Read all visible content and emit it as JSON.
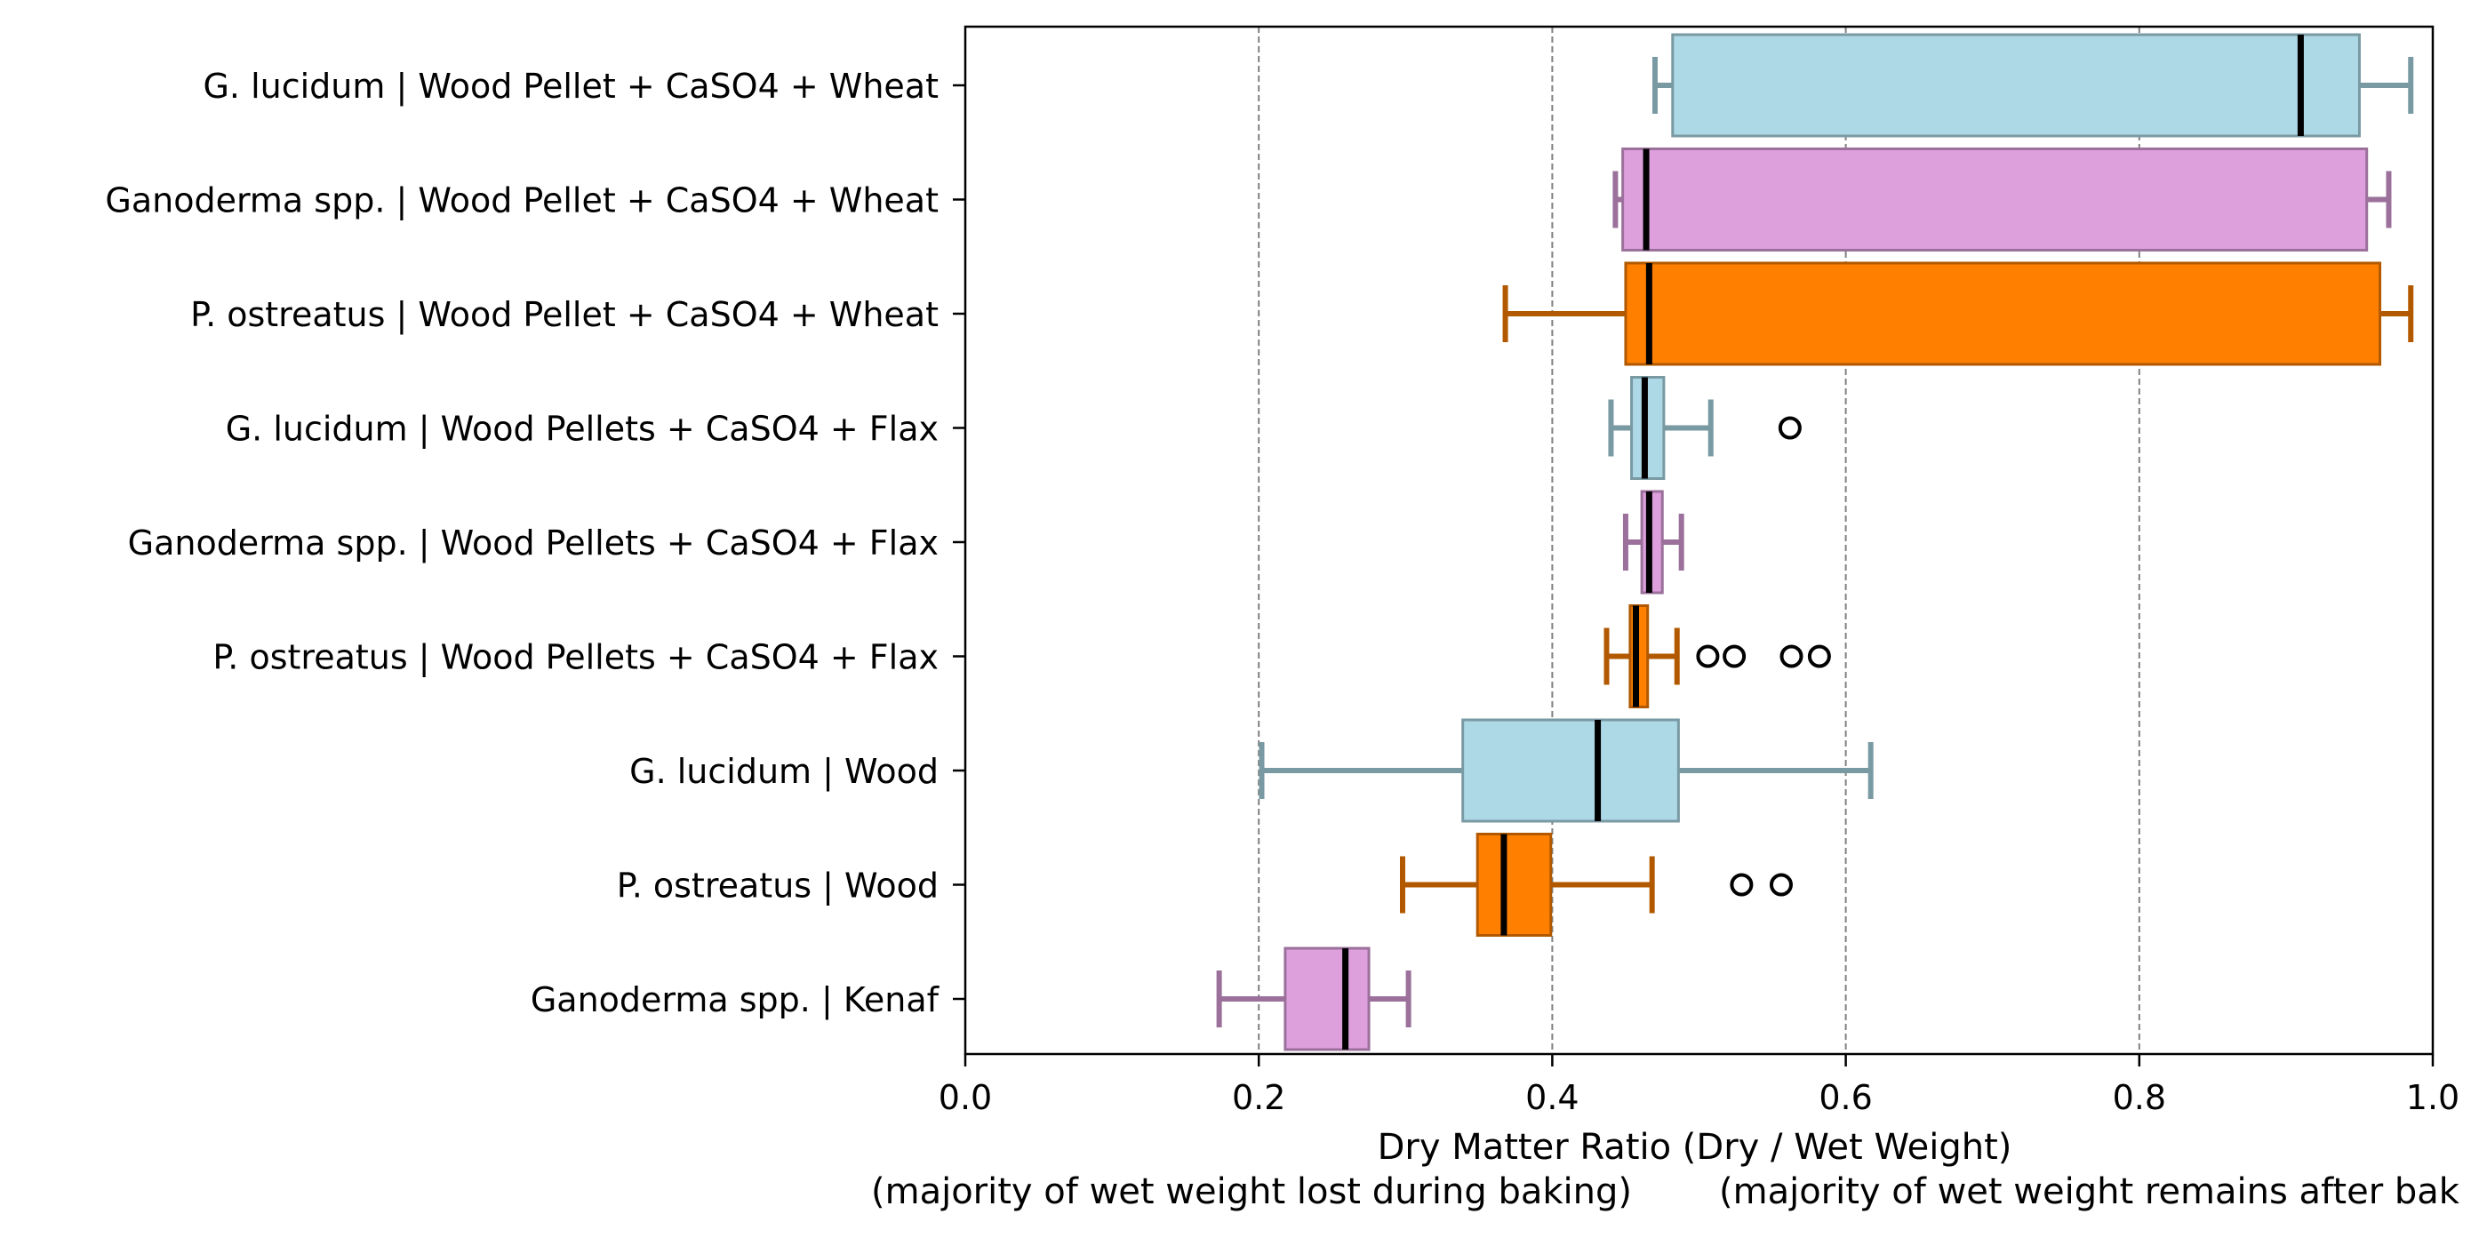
{
  "chart_data": {
    "type": "boxplot",
    "orientation": "horizontal",
    "title": "",
    "xlabel": "Dry Matter Ratio (Dry / Wet Weight)",
    "xlabel_notes": [
      "(majority of wet weight lost during baking)",
      "(majority of wet weight remains after bak"
    ],
    "ylabel": "",
    "xlim": [
      0.0,
      1.0
    ],
    "xticks": [
      0.0,
      0.2,
      0.4,
      0.6,
      0.8,
      1.0
    ],
    "xtick_labels": [
      "0.0",
      "0.2",
      "0.4",
      "0.6",
      "0.8",
      "1.0"
    ],
    "grid": "vertical dashed lines at 0.2, 0.4, 0.6, 0.8",
    "series": [
      {
        "label": "G. lucidum | Wood Pellet + CaSO4 + Wheat",
        "species": "G. lucidum",
        "whisker_low": 0.47,
        "q1": 0.482,
        "median": 0.91,
        "q3": 0.95,
        "whisker_high": 0.985,
        "outliers": []
      },
      {
        "label": "Ganoderma spp. | Wood Pellet + CaSO4 + Wheat",
        "species": "Ganoderma spp.",
        "whisker_low": 0.443,
        "q1": 0.448,
        "median": 0.464,
        "q3": 0.955,
        "whisker_high": 0.97,
        "outliers": []
      },
      {
        "label": "P. ostreatus | Wood Pellet + CaSO4 + Wheat",
        "species": "P. ostreatus",
        "whisker_low": 0.368,
        "q1": 0.45,
        "median": 0.466,
        "q3": 0.964,
        "whisker_high": 0.985,
        "outliers": []
      },
      {
        "label": "G. lucidum | Wood Pellets + CaSO4 + Flax",
        "species": "G. lucidum",
        "whisker_low": 0.44,
        "q1": 0.454,
        "median": 0.463,
        "q3": 0.476,
        "whisker_high": 0.508,
        "outliers": [
          0.562
        ]
      },
      {
        "label": "Ganoderma spp. | Wood Pellets + CaSO4 + Flax",
        "species": "Ganoderma spp.",
        "whisker_low": 0.45,
        "q1": 0.461,
        "median": 0.466,
        "q3": 0.475,
        "whisker_high": 0.488,
        "outliers": []
      },
      {
        "label": "P. ostreatus | Wood Pellets + CaSO4 + Flax",
        "species": "P. ostreatus",
        "whisker_low": 0.437,
        "q1": 0.453,
        "median": 0.457,
        "q3": 0.465,
        "whisker_high": 0.485,
        "outliers": [
          0.506,
          0.524,
          0.563,
          0.582
        ]
      },
      {
        "label": "G. lucidum | Wood",
        "species": "G. lucidum",
        "whisker_low": 0.202,
        "q1": 0.339,
        "median": 0.431,
        "q3": 0.486,
        "whisker_high": 0.617,
        "outliers": []
      },
      {
        "label": "P. ostreatus | Wood",
        "species": "P. ostreatus",
        "whisker_low": 0.298,
        "q1": 0.349,
        "median": 0.367,
        "q3": 0.399,
        "whisker_high": 0.468,
        "outliers": [
          0.529,
          0.556
        ]
      },
      {
        "label": "Ganoderma spp. | Kenaf",
        "species": "Ganoderma spp.",
        "whisker_low": 0.173,
        "q1": 0.218,
        "median": 0.259,
        "q3": 0.275,
        "whisker_high": 0.302,
        "outliers": []
      }
    ],
    "colors": {
      "G. lucidum": {
        "fill": "#add8e6",
        "edge": "#7a9aa3"
      },
      "Ganoderma spp.": {
        "fill": "#dda0dd",
        "edge": "#9b709b"
      },
      "P. ostreatus": {
        "fill": "#ff7f00",
        "edge": "#b25900"
      },
      "median": "#000000",
      "grid": "#808080"
    }
  }
}
